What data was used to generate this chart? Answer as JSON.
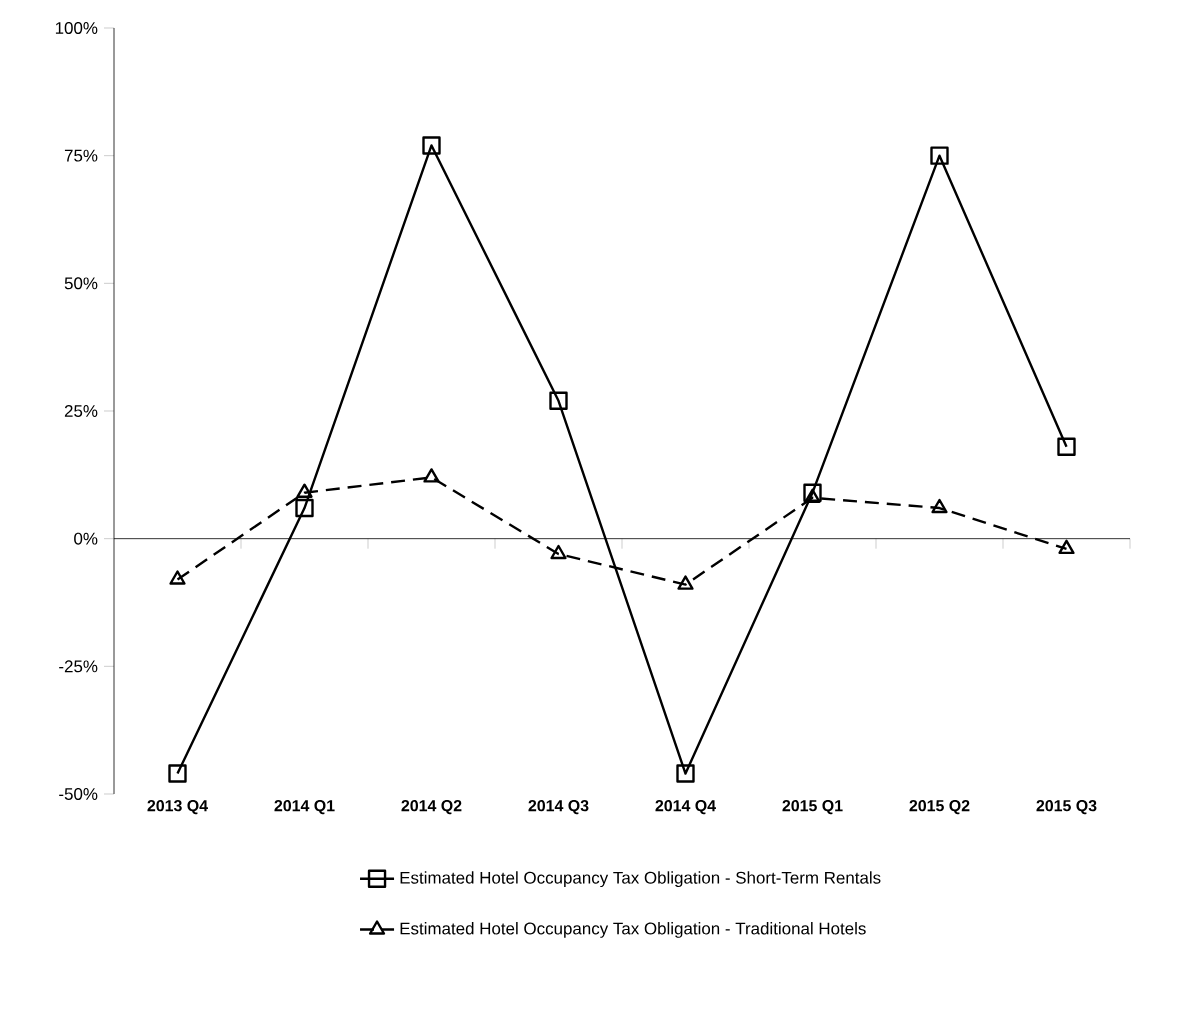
{
  "chart_data": {
    "type": "line",
    "categories": [
      "2013 Q4",
      "2014 Q1",
      "2014 Q2",
      "2014 Q3",
      "2014 Q4",
      "2015 Q1",
      "2015 Q2",
      "2015 Q3"
    ],
    "series": [
      {
        "name": "Estimated Hotel Occupancy Tax Obligation - Short-Term Rentals",
        "color": "#000000",
        "marker": "square",
        "line_style": "solid",
        "values": [
          -46,
          6,
          77,
          27,
          -46,
          9,
          75,
          18
        ]
      },
      {
        "name": "Estimated Hotel Occupancy Tax Obligation - Traditional Hotels",
        "color": "#000000",
        "marker": "triangle",
        "line_style": "dashed",
        "values": [
          -8,
          9,
          12,
          -3,
          -9,
          8,
          6,
          -2
        ]
      }
    ],
    "ylim": [
      -50,
      100
    ],
    "yticks": [
      {
        "value": -50,
        "label": "-50%"
      },
      {
        "value": -25,
        "label": "-25%"
      },
      {
        "value": 0,
        "label": "0%"
      },
      {
        "value": 25,
        "label": "25%"
      },
      {
        "value": 50,
        "label": "50%"
      },
      {
        "value": 75,
        "label": "75%"
      },
      {
        "value": 100,
        "label": "100%"
      }
    ],
    "legend": "bottom"
  }
}
